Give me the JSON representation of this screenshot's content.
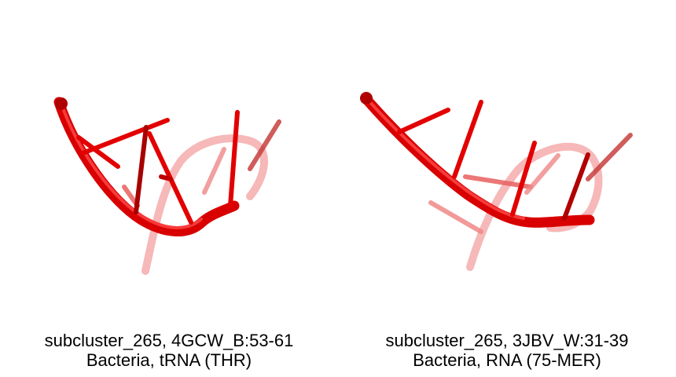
{
  "panels": [
    {
      "line1": "subcluster_265, 4GCW_B:53-61",
      "line2": "Bacteria, tRNA (THR)",
      "structure": "rna-backbone-cartoon"
    },
    {
      "line1": "subcluster_265, 3JBV_W:31-39",
      "line2": "Bacteria, RNA (75-MER)",
      "structure": "rna-backbone-cartoon"
    }
  ],
  "colors": {
    "backbone": "#e00000",
    "backbone_far": "#f08080",
    "highlight": "#ff5a5a",
    "shadow": "#8a0000"
  }
}
